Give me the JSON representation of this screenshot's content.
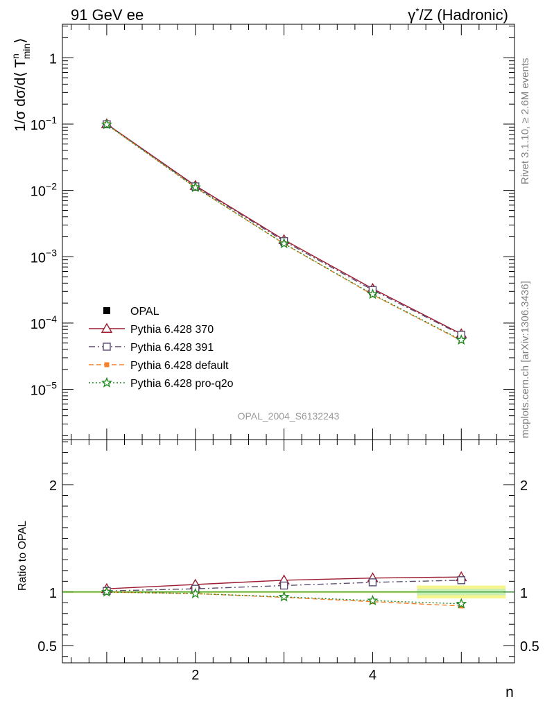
{
  "header": {
    "left": "91 GeV ee",
    "right_greek": "γ",
    "right_sup": "*",
    "right_rest": "/Z (Hadronic)"
  },
  "side_text": {
    "rivet": "Rivet 3.1.10, ≥ 2.6M events",
    "mcplots": "mcplots.cern.ch [arXiv:1306.3436]"
  },
  "watermark": "OPAL_2004_S6132243",
  "axes": {
    "ylabel_main": "1/σ dσ/d⟨ T",
    "ylabel_main_sup": "n",
    "ylabel_main_sub": "min",
    "ylabel_main_close": "⟩",
    "ylabel_ratio": "Ratio to OPAL",
    "xlabel": "n"
  },
  "colors": {
    "OPAL": "#000000",
    "Pythia 6.428 370": "#9b1b30",
    "Pythia 6.428 391": "#5a4a6e",
    "Pythia 6.428 default": "#f5802a",
    "Pythia 6.428 pro-q2o": "#208a20",
    "band_inner": "#c8f0b4",
    "band_outer": "#f5f58c"
  },
  "chart_data": {
    "type": "line",
    "x": [
      1,
      2,
      3,
      4,
      5
    ],
    "xlim": [
      0.5,
      5.6
    ],
    "x_ticks": [
      2,
      4
    ],
    "main": {
      "yscale": "log",
      "ylim": [
        1.75e-06,
        3.2
      ],
      "y_ticks": [
        {
          "value": 1,
          "base": "1",
          "exp": ""
        },
        {
          "value": 0.1,
          "base": "10",
          "exp": "−1"
        },
        {
          "value": 0.01,
          "base": "10",
          "exp": "−2"
        },
        {
          "value": 0.001,
          "base": "10",
          "exp": "−3"
        },
        {
          "value": 0.0001,
          "base": "10",
          "exp": "−4"
        },
        {
          "value": 1e-05,
          "base": "10",
          "exp": "−5"
        }
      ]
    },
    "ratio": {
      "ylim": [
        0.34,
        2.42
      ],
      "y_ticks": [
        {
          "value": 2,
          "label": "2"
        },
        {
          "value": 1,
          "label": "1"
        },
        {
          "value": 0.5,
          "label": "0.5"
        }
      ],
      "band": [
        {
          "x_from": 0.5,
          "x_to": 4.5,
          "inner": [
            0.995,
            1.005
          ],
          "outer": [
            0.99,
            1.01
          ]
        },
        {
          "x_from": 4.5,
          "x_to": 5.5,
          "inner": [
            0.97,
            1.03
          ],
          "outer": [
            0.94,
            1.06
          ]
        }
      ]
    },
    "series": [
      {
        "name": "OPAL",
        "marker": "square-filled",
        "dash": "none",
        "values": [
          0.0985,
          0.0112,
          0.00165,
          0.000295,
          6.2e-05
        ],
        "ratio": [
          1,
          1,
          1,
          1,
          1
        ]
      },
      {
        "name": "Pythia 6.428 370",
        "marker": "triangle-open",
        "dash": "solid",
        "values": [
          0.1005,
          0.0118,
          0.0018,
          0.00033,
          6.85e-05
        ],
        "ratio": [
          1.03,
          1.07,
          1.11,
          1.13,
          1.14
        ]
      },
      {
        "name": "Pythia 6.428 391",
        "marker": "square-open",
        "dash": "dashdot",
        "values": [
          0.0995,
          0.0115,
          0.00172,
          0.000315,
          6.65e-05
        ],
        "ratio": [
          1.01,
          1.03,
          1.06,
          1.09,
          1.11
        ]
      },
      {
        "name": "Pythia 6.428 default",
        "marker": "square-small",
        "dash": "dashed",
        "values": [
          0.0985,
          0.0111,
          0.00157,
          0.000267,
          5.43e-05
        ],
        "ratio": [
          1.0,
          0.985,
          0.95,
          0.91,
          0.87
        ]
      },
      {
        "name": "Pythia 6.428 pro-q2o",
        "marker": "star-open",
        "dash": "dotted",
        "values": [
          0.0985,
          0.0111,
          0.00158,
          0.000272,
          5.55e-05
        ],
        "ratio": [
          1.0,
          0.985,
          0.955,
          0.92,
          0.89
        ]
      }
    ]
  }
}
